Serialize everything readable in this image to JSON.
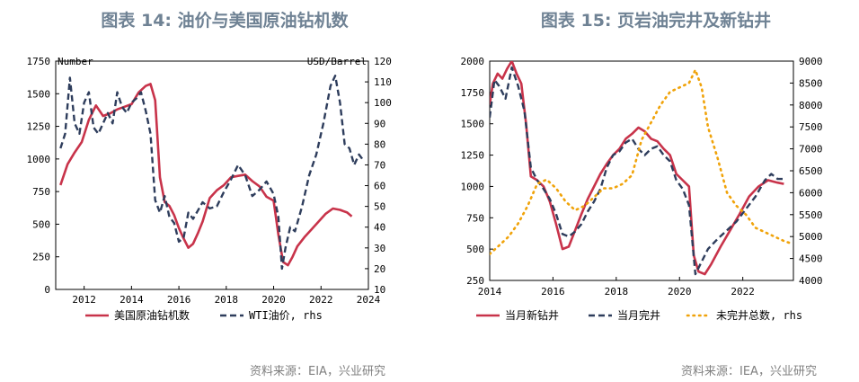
{
  "chart_data": [
    {
      "type": "line",
      "title": "图表 14: 油价与美国原油钻机数",
      "source": "资料来源：EIA，兴业研究",
      "left_axis": {
        "unit": "Number",
        "ylim": [
          0,
          1750
        ],
        "ticks": [
          0,
          250,
          500,
          750,
          1000,
          1250,
          1500,
          1750
        ]
      },
      "right_axis": {
        "unit": "USD/Barrel",
        "ylim": [
          10,
          120
        ],
        "ticks": [
          10,
          20,
          30,
          40,
          50,
          60,
          70,
          80,
          90,
          100,
          110,
          120
        ]
      },
      "x_axis": {
        "xlim": [
          2010.8,
          2024
        ],
        "ticks": [
          "2012",
          "2014",
          "2016",
          "2018",
          "2020",
          "2022",
          "2024"
        ]
      },
      "series": [
        {
          "name": "美国原油钻机数",
          "axis": "left",
          "color": "#c8334a",
          "style": "solid",
          "x": [
            2011.0,
            2011.3,
            2011.6,
            2011.9,
            2012.2,
            2012.5,
            2012.8,
            2013.1,
            2013.4,
            2013.7,
            2014.0,
            2014.3,
            2014.6,
            2014.8,
            2015.0,
            2015.2,
            2015.4,
            2015.6,
            2015.8,
            2016.0,
            2016.2,
            2016.4,
            2016.6,
            2016.8,
            2017.0,
            2017.3,
            2017.6,
            2017.9,
            2018.2,
            2018.5,
            2018.8,
            2019.1,
            2019.4,
            2019.7,
            2020.0,
            2020.2,
            2020.4,
            2020.6,
            2020.8,
            2021.0,
            2021.3,
            2021.6,
            2021.9,
            2022.2,
            2022.5,
            2022.8,
            2023.1,
            2023.3
          ],
          "values": [
            800,
            960,
            1050,
            1130,
            1300,
            1410,
            1330,
            1350,
            1380,
            1400,
            1420,
            1510,
            1560,
            1575,
            1450,
            860,
            670,
            640,
            570,
            470,
            390,
            320,
            350,
            430,
            520,
            700,
            760,
            800,
            860,
            870,
            880,
            830,
            790,
            710,
            680,
            420,
            210,
            185,
            250,
            330,
            400,
            460,
            520,
            580,
            620,
            610,
            590,
            560
          ]
        },
        {
          "name": "WTI油价, rhs",
          "axis": "right",
          "color": "#2e3d5c",
          "style": "dashed",
          "x": [
            2011.0,
            2011.2,
            2011.4,
            2011.6,
            2011.8,
            2012.0,
            2012.2,
            2012.4,
            2012.6,
            2012.8,
            2013.0,
            2013.2,
            2013.4,
            2013.6,
            2013.8,
            2014.0,
            2014.2,
            2014.4,
            2014.6,
            2014.8,
            2015.0,
            2015.2,
            2015.4,
            2015.6,
            2015.8,
            2016.0,
            2016.2,
            2016.4,
            2016.6,
            2016.8,
            2017.0,
            2017.3,
            2017.6,
            2017.9,
            2018.2,
            2018.5,
            2018.8,
            2019.1,
            2019.4,
            2019.7,
            2020.0,
            2020.2,
            2020.35,
            2020.5,
            2020.7,
            2020.9,
            2021.2,
            2021.5,
            2021.8,
            2022.1,
            2022.4,
            2022.6,
            2022.8,
            2023.0,
            2023.2,
            2023.4,
            2023.6,
            2023.8
          ],
          "values": [
            78,
            85,
            112,
            90,
            85,
            100,
            105,
            88,
            85,
            90,
            95,
            90,
            105,
            98,
            95,
            100,
            102,
            105,
            96,
            85,
            53,
            47,
            55,
            45,
            42,
            33,
            35,
            47,
            44,
            48,
            52,
            49,
            50,
            57,
            63,
            70,
            65,
            55,
            58,
            62,
            56,
            45,
            20,
            30,
            40,
            38,
            50,
            65,
            75,
            90,
            108,
            113,
            100,
            80,
            78,
            70,
            75,
            72
          ]
        }
      ],
      "legend": [
        "美国原油钻机数",
        "WTI油价, rhs"
      ]
    },
    {
      "type": "line",
      "title": "图表 15: 页岩油完井及新钻井",
      "source": "资料来源：IEA，兴业研究",
      "left_axis": {
        "ylim": [
          250,
          2000
        ],
        "ticks": [
          250,
          500,
          750,
          1000,
          1250,
          1500,
          1750,
          2000
        ]
      },
      "right_axis": {
        "ylim": [
          4000,
          9000
        ],
        "ticks": [
          4000,
          4500,
          5000,
          5500,
          6000,
          6500,
          7000,
          7500,
          8000,
          8500,
          9000
        ]
      },
      "x_axis": {
        "xlim": [
          2014,
          2023.6
        ],
        "ticks": [
          "2014",
          "2016",
          "2018",
          "2020",
          "2022"
        ]
      },
      "series": [
        {
          "name": "当月新钻井",
          "axis": "left",
          "color": "#c8334a",
          "style": "solid",
          "x": [
            2014.0,
            2014.1,
            2014.25,
            2014.4,
            2014.55,
            2014.7,
            2014.85,
            2015.0,
            2015.15,
            2015.3,
            2015.5,
            2015.7,
            2015.9,
            2016.1,
            2016.3,
            2016.5,
            2016.7,
            2016.9,
            2017.1,
            2017.3,
            2017.5,
            2017.7,
            2017.9,
            2018.1,
            2018.3,
            2018.5,
            2018.7,
            2018.9,
            2019.1,
            2019.3,
            2019.5,
            2019.7,
            2019.9,
            2020.1,
            2020.3,
            2020.45,
            2020.6,
            2020.8,
            2021.0,
            2021.3,
            2021.6,
            2021.9,
            2022.2,
            2022.5,
            2022.8,
            2023.1,
            2023.3
          ],
          "values": [
            1650,
            1820,
            1900,
            1860,
            1940,
            2000,
            1900,
            1820,
            1500,
            1080,
            1050,
            1000,
            880,
            700,
            500,
            520,
            650,
            780,
            900,
            1000,
            1100,
            1180,
            1250,
            1300,
            1380,
            1420,
            1470,
            1440,
            1380,
            1360,
            1300,
            1250,
            1100,
            1050,
            1000,
            450,
            320,
            300,
            380,
            520,
            650,
            780,
            920,
            1000,
            1050,
            1030,
            1020
          ]
        },
        {
          "name": "当月完井",
          "axis": "left",
          "color": "#2e3d5c",
          "style": "dashed",
          "x": [
            2014.0,
            2014.15,
            2014.3,
            2014.5,
            2014.7,
            2014.9,
            2015.1,
            2015.3,
            2015.5,
            2015.7,
            2015.9,
            2016.1,
            2016.3,
            2016.5,
            2016.7,
            2016.9,
            2017.1,
            2017.3,
            2017.5,
            2017.7,
            2017.9,
            2018.1,
            2018.3,
            2018.5,
            2018.7,
            2018.9,
            2019.1,
            2019.3,
            2019.5,
            2019.7,
            2019.9,
            2020.1,
            2020.3,
            2020.5,
            2020.7,
            2020.9,
            2021.2,
            2021.5,
            2021.8,
            2022.1,
            2022.4,
            2022.7,
            2022.9,
            2023.1,
            2023.3
          ],
          "values": [
            1550,
            1850,
            1800,
            1700,
            1950,
            1800,
            1600,
            1150,
            1050,
            980,
            900,
            780,
            620,
            600,
            640,
            700,
            800,
            880,
            980,
            1150,
            1250,
            1280,
            1350,
            1380,
            1300,
            1250,
            1300,
            1320,
            1250,
            1200,
            1050,
            980,
            850,
            300,
            400,
            500,
            580,
            650,
            720,
            820,
            920,
            1050,
            1100,
            1060,
            1060
          ]
        },
        {
          "name": "未完井总数, rhs",
          "axis": "right",
          "color": "#f0a30a",
          "style": "dotted",
          "x": [
            2014.0,
            2014.3,
            2014.6,
            2014.9,
            2015.2,
            2015.5,
            2015.8,
            2016.1,
            2016.4,
            2016.7,
            2017.0,
            2017.3,
            2017.6,
            2017.9,
            2018.2,
            2018.5,
            2018.8,
            2019.1,
            2019.4,
            2019.7,
            2020.0,
            2020.3,
            2020.5,
            2020.7,
            2020.9,
            2021.2,
            2021.5,
            2021.8,
            2022.1,
            2022.4,
            2022.7,
            2023.0,
            2023.3,
            2023.5
          ],
          "values": [
            4600,
            4800,
            5000,
            5300,
            5700,
            6200,
            6300,
            6100,
            5800,
            5600,
            5700,
            5900,
            6100,
            6100,
            6200,
            6400,
            7200,
            7600,
            8000,
            8300,
            8400,
            8500,
            8800,
            8400,
            7500,
            6800,
            6000,
            5700,
            5500,
            5200,
            5100,
            5000,
            4900,
            4850
          ]
        }
      ],
      "legend": [
        "当月新钻井",
        "当月完井",
        "未完井总数, rhs"
      ]
    }
  ]
}
